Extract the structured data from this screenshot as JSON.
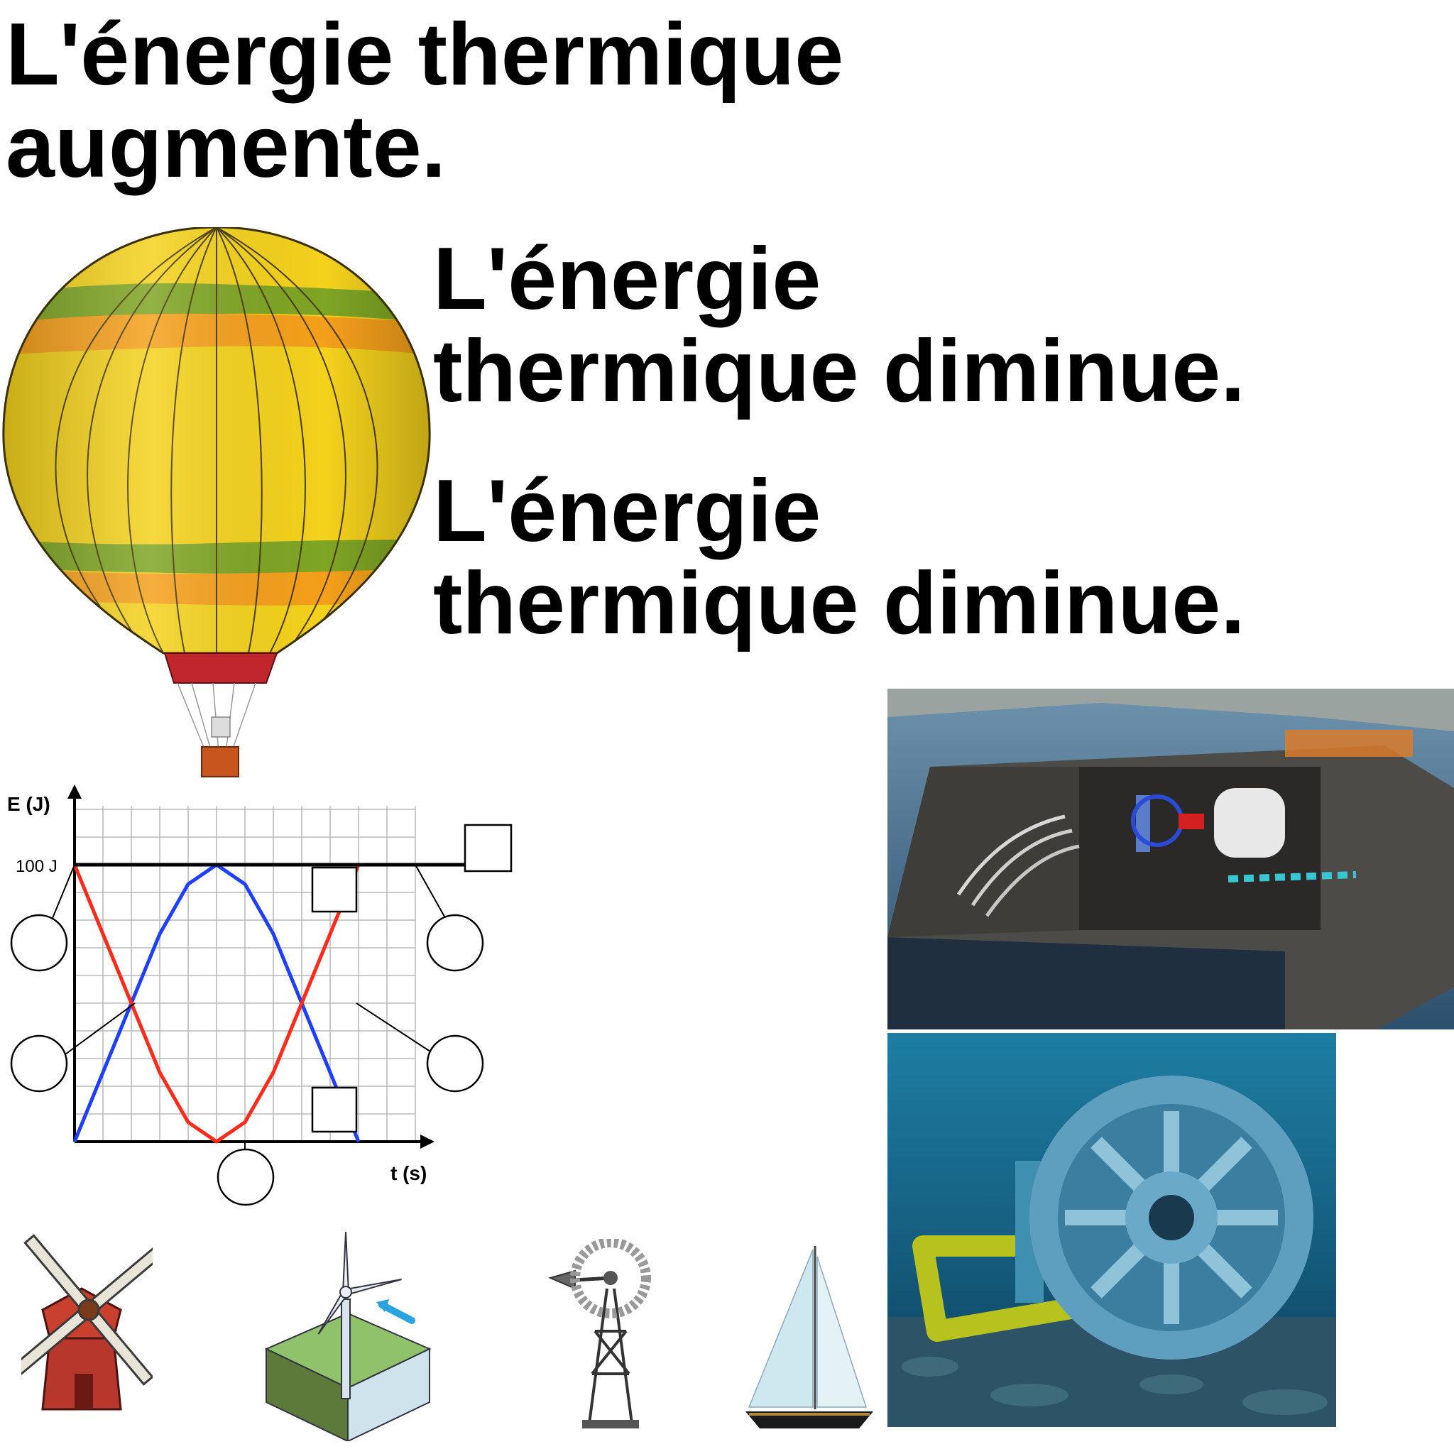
{
  "headlines": [
    {
      "line1": "L'énergie thermique",
      "line2": "augmente."
    },
    {
      "line1": "L'énergie",
      "line2": "thermique diminue."
    },
    {
      "line1": "L'énergie",
      "line2": "thermique diminue."
    }
  ],
  "graph": {
    "y_axis_label": "E (J)",
    "x_axis_label": "t (s)",
    "total_label": "100 J"
  },
  "chart_data": {
    "type": "line",
    "title": "",
    "xlabel": "t (s)",
    "ylabel": "E (J)",
    "ylim": [
      0,
      100
    ],
    "xlim": [
      0,
      12
    ],
    "x": [
      0,
      1,
      2,
      3,
      4,
      5,
      6,
      7,
      8,
      9,
      10,
      11,
      12
    ],
    "series": [
      {
        "color": "#1f3fff",
        "values": [
          0,
          25,
          50,
          75,
          93,
          100,
          93,
          75,
          50,
          25,
          0,
          null,
          null
        ]
      },
      {
        "color": "#ff2a1a",
        "values": [
          100,
          75,
          50,
          25,
          7,
          0,
          7,
          25,
          50,
          75,
          100,
          null,
          null
        ]
      },
      {
        "color": "#000000",
        "values": [
          100,
          100,
          100,
          100,
          100,
          100,
          100,
          100,
          100,
          100,
          100,
          100,
          100
        ]
      }
    ],
    "grid": true
  },
  "icons": [
    "hot-air-balloon-icon",
    "windmill-icon",
    "wind-turbine-icon",
    "farm-windpump-icon",
    "sailboat-icon"
  ],
  "photos": [
    "wave-energy-plant-photo",
    "tidal-turbine-photo"
  ]
}
